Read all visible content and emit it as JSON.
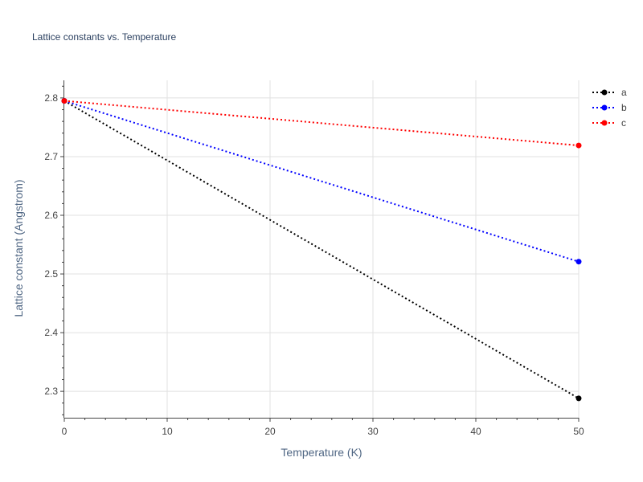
{
  "chart_data": {
    "type": "line",
    "title": "Lattice constants vs. Temperature",
    "xlabel": "Temperature (K)",
    "ylabel": "Lattice constant (Angstrom)",
    "xlim": [
      0,
      50
    ],
    "ylim": [
      2.255,
      2.83
    ],
    "xticks": [
      0,
      10,
      20,
      30,
      40,
      50
    ],
    "yticks": [
      2.3,
      2.4,
      2.5,
      2.6,
      2.7,
      2.8
    ],
    "grid": true,
    "legend_position": "top-right",
    "series": [
      {
        "name": "a",
        "color": "#000000",
        "x": [
          0,
          50
        ],
        "y": [
          2.795,
          2.288
        ]
      },
      {
        "name": "b",
        "color": "#0000ff",
        "x": [
          0,
          50
        ],
        "y": [
          2.795,
          2.521
        ]
      },
      {
        "name": "c",
        "color": "#ff0000",
        "x": [
          0,
          50
        ],
        "y": [
          2.795,
          2.719
        ]
      }
    ]
  }
}
